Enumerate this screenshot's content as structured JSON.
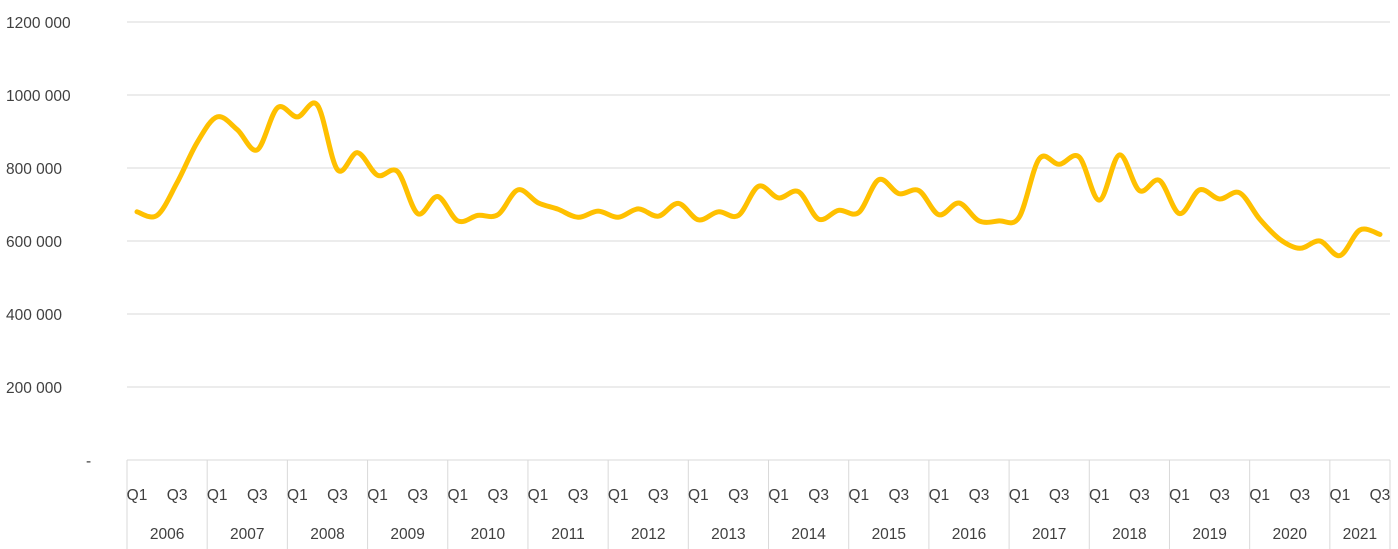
{
  "chart_data": {
    "type": "line",
    "title": "",
    "xlabel": "",
    "ylabel": "",
    "ylim": [
      0,
      1200000
    ],
    "y_ticks": [
      {
        "value": 0,
        "label": "-"
      },
      {
        "value": 200000,
        "label": "200 000"
      },
      {
        "value": 400000,
        "label": "400 000"
      },
      {
        "value": 600000,
        "label": "600 000"
      },
      {
        "value": 800000,
        "label": "800 000"
      },
      {
        "value": 1000000,
        "label": "1000 000"
      },
      {
        "value": 1200000,
        "label": "1200 000"
      }
    ],
    "grid": "horizontal",
    "line_color": "#FFC000",
    "years": [
      "2006",
      "2007",
      "2008",
      "2009",
      "2010",
      "2011",
      "2012",
      "2013",
      "2014",
      "2015",
      "2016",
      "2017",
      "2018",
      "2019",
      "2020",
      "2021"
    ],
    "quarter_labels": [
      "Q1",
      "Q3"
    ],
    "x": [
      "2006 Q1",
      "2006 Q2",
      "2006 Q3",
      "2006 Q4",
      "2007 Q1",
      "2007 Q2",
      "2007 Q3",
      "2007 Q4",
      "2008 Q1",
      "2008 Q2",
      "2008 Q3",
      "2008 Q4",
      "2009 Q1",
      "2009 Q2",
      "2009 Q3",
      "2009 Q4",
      "2010 Q1",
      "2010 Q2",
      "2010 Q3",
      "2010 Q4",
      "2011 Q1",
      "2011 Q2",
      "2011 Q3",
      "2011 Q4",
      "2012 Q1",
      "2012 Q2",
      "2012 Q3",
      "2012 Q4",
      "2013 Q1",
      "2013 Q2",
      "2013 Q3",
      "2013 Q4",
      "2014 Q1",
      "2014 Q2",
      "2014 Q3",
      "2014 Q4",
      "2015 Q1",
      "2015 Q2",
      "2015 Q3",
      "2015 Q4",
      "2016 Q1",
      "2016 Q2",
      "2016 Q3",
      "2016 Q4",
      "2017 Q1",
      "2017 Q2",
      "2017 Q3",
      "2017 Q4",
      "2018 Q1",
      "2018 Q2",
      "2018 Q3",
      "2018 Q4",
      "2019 Q1",
      "2019 Q2",
      "2019 Q3",
      "2019 Q4",
      "2020 Q1",
      "2020 Q2",
      "2020 Q3",
      "2020 Q4",
      "2021 Q1",
      "2021 Q2",
      "2021 Q3"
    ],
    "series": [
      {
        "values": [
          680000,
          670000,
          760000,
          870000,
          940000,
          905000,
          850000,
          965000,
          940000,
          972000,
          795000,
          842000,
          780000,
          790000,
          675000,
          722000,
          655000,
          670000,
          672000,
          740000,
          705000,
          687000,
          665000,
          682000,
          665000,
          688000,
          668000,
          703000,
          658000,
          680000,
          670000,
          750000,
          718000,
          735000,
          660000,
          684000,
          678000,
          768000,
          730000,
          738000,
          672000,
          704000,
          655000,
          655000,
          665000,
          825000,
          810000,
          830000,
          712000,
          836000,
          738000,
          766000,
          675000,
          740000,
          715000,
          732000,
          660000,
          605000,
          580000,
          600000,
          560000,
          630000,
          618000
        ]
      }
    ]
  }
}
